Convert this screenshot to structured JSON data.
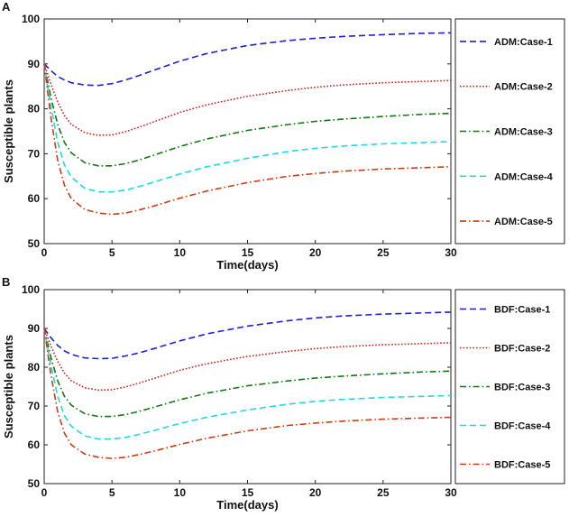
{
  "chart_data": [
    {
      "type": "line",
      "panel_label": "A",
      "xlabel": "Time(days)",
      "ylabel": "Susceptible plants",
      "xlim": [
        0,
        30
      ],
      "ylim": [
        50,
        100
      ],
      "xticks": [
        0,
        5,
        10,
        15,
        20,
        25,
        30
      ],
      "yticks": [
        50,
        60,
        70,
        80,
        90,
        100
      ],
      "legend_position": "right-outside",
      "x": [
        0,
        0.5,
        1,
        1.5,
        2,
        3,
        4,
        5,
        6,
        7,
        8,
        10,
        12,
        15,
        18,
        20,
        22,
        25,
        28,
        30
      ],
      "series": [
        {
          "name": "ADM:Case-1",
          "color": "#1f1fdc",
          "dash": "dashed",
          "values": [
            90,
            88.5,
            87.2,
            86.4,
            85.8,
            85.3,
            85.2,
            85.6,
            86.4,
            87.4,
            88.5,
            90.6,
            92.3,
            94.1,
            95.2,
            95.7,
            96.1,
            96.5,
            96.8,
            96.9
          ]
        },
        {
          "name": "ADM:Case-2",
          "color": "#d42020",
          "dash": "dotted",
          "values": [
            90,
            85.5,
            81.5,
            78.5,
            76.5,
            74.7,
            74.1,
            74.2,
            74.9,
            75.9,
            77.0,
            79.2,
            80.9,
            82.8,
            84.1,
            84.8,
            85.3,
            85.8,
            86.1,
            86.3
          ]
        },
        {
          "name": "ADM:Case-3",
          "color": "#0f7a0f",
          "dash": "dashdot",
          "values": [
            90,
            82.5,
            76.5,
            72.5,
            70.2,
            68.0,
            67.3,
            67.3,
            67.8,
            68.6,
            69.6,
            71.6,
            73.3,
            75.2,
            76.5,
            77.2,
            77.7,
            78.3,
            78.8,
            79.0
          ]
        },
        {
          "name": "ADM:Case-4",
          "color": "#19dede",
          "dash": "dashed",
          "values": [
            90,
            80.5,
            72.5,
            67.5,
            64.8,
            62.3,
            61.5,
            61.5,
            61.9,
            62.7,
            63.6,
            65.5,
            67.1,
            69.0,
            70.5,
            71.2,
            71.7,
            72.2,
            72.5,
            72.7
          ]
        },
        {
          "name": "ADM:Case-5",
          "color": "#d03c10",
          "dash": "dashdot",
          "values": [
            90,
            78.0,
            68.5,
            63.0,
            60.0,
            57.6,
            56.8,
            56.5,
            56.8,
            57.5,
            58.3,
            60.1,
            61.7,
            63.6,
            65.0,
            65.6,
            66.1,
            66.6,
            66.9,
            67.1
          ]
        }
      ]
    },
    {
      "type": "line",
      "panel_label": "B",
      "xlabel": "Time(days)",
      "ylabel": "Susceptible plants",
      "xlim": [
        0,
        30
      ],
      "ylim": [
        50,
        100
      ],
      "xticks": [
        0,
        5,
        10,
        15,
        20,
        25,
        30
      ],
      "yticks": [
        50,
        60,
        70,
        80,
        90,
        100
      ],
      "legend_position": "right-outside",
      "x": [
        0,
        0.5,
        1,
        1.5,
        2,
        3,
        4,
        5,
        6,
        7,
        8,
        10,
        12,
        15,
        18,
        20,
        22,
        25,
        28,
        30
      ],
      "series": [
        {
          "name": "BDF:Case-1",
          "color": "#1f1fdc",
          "dash": "dashed",
          "values": [
            90,
            87.6,
            85.6,
            84.2,
            83.3,
            82.4,
            82.2,
            82.3,
            82.9,
            83.7,
            84.7,
            86.8,
            88.6,
            90.6,
            92.0,
            92.7,
            93.2,
            93.7,
            94.0,
            94.2
          ]
        },
        {
          "name": "BDF:Case-2",
          "color": "#d42020",
          "dash": "dotted",
          "values": [
            90,
            85.5,
            81.5,
            78.5,
            76.5,
            74.7,
            74.1,
            74.2,
            74.9,
            75.9,
            77.0,
            79.2,
            80.9,
            82.8,
            84.1,
            84.8,
            85.3,
            85.8,
            86.1,
            86.3
          ]
        },
        {
          "name": "BDF:Case-3",
          "color": "#0f7a0f",
          "dash": "dashdot",
          "values": [
            90,
            82.5,
            76.5,
            72.5,
            70.2,
            68.0,
            67.3,
            67.3,
            67.8,
            68.6,
            69.6,
            71.6,
            73.3,
            75.2,
            76.5,
            77.2,
            77.7,
            78.3,
            78.8,
            79.0
          ]
        },
        {
          "name": "BDF:Case-4",
          "color": "#19dede",
          "dash": "dashed",
          "values": [
            90,
            80.5,
            72.5,
            67.5,
            64.8,
            62.3,
            61.5,
            61.5,
            61.9,
            62.7,
            63.6,
            65.5,
            67.1,
            69.0,
            70.5,
            71.2,
            71.7,
            72.2,
            72.5,
            72.7
          ]
        },
        {
          "name": "BDF:Case-5",
          "color": "#d03c10",
          "dash": "dashdot",
          "values": [
            90,
            78.0,
            68.5,
            63.0,
            60.0,
            57.6,
            56.8,
            56.5,
            56.8,
            57.5,
            58.3,
            60.1,
            61.7,
            63.6,
            65.0,
            65.6,
            66.1,
            66.6,
            66.9,
            67.1
          ]
        }
      ]
    }
  ]
}
